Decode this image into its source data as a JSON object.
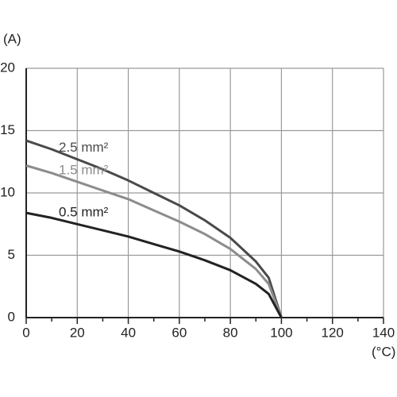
{
  "chart_data": {
    "type": "line",
    "y_label": "(A)",
    "x_label": "(°C)",
    "x": [
      0,
      10,
      20,
      30,
      40,
      50,
      60,
      70,
      80,
      90,
      95,
      100
    ],
    "series": [
      {
        "name": "2.5 mm²",
        "color": "#4a4a4a",
        "values": [
          14.2,
          13.5,
          12.7,
          11.9,
          11.0,
          10.0,
          9.0,
          7.8,
          6.4,
          4.5,
          3.2,
          0
        ]
      },
      {
        "name": "1.5 mm²",
        "color": "#8c8c8c",
        "values": [
          12.2,
          11.6,
          10.9,
          10.2,
          9.5,
          8.6,
          7.7,
          6.7,
          5.5,
          3.9,
          2.7,
          0
        ]
      },
      {
        "name": "0.5 mm²",
        "color": "#222222",
        "values": [
          8.4,
          8.0,
          7.5,
          7.0,
          6.5,
          5.9,
          5.3,
          4.6,
          3.8,
          2.7,
          1.9,
          0
        ]
      }
    ],
    "xlim": [
      0,
      140
    ],
    "xticks": [
      0,
      20,
      40,
      60,
      80,
      100,
      120,
      140
    ],
    "x_minor_ticks": [
      10,
      30,
      50,
      70,
      90,
      110,
      130
    ],
    "ylim": [
      0,
      20
    ],
    "yticks": [
      0,
      5,
      10,
      15,
      20
    ],
    "grid": true
  }
}
